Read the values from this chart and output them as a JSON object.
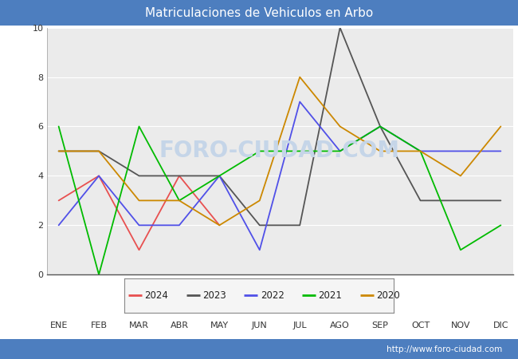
{
  "title": "Matriculaciones de Vehiculos en Arbo",
  "title_bg_color": "#4d7ebf",
  "title_text_color": "#ffffff",
  "plot_bg_color": "#ebebeb",
  "fig_bg_color": "#ffffff",
  "months": [
    "ENE",
    "FEB",
    "MAR",
    "ABR",
    "MAY",
    "JUN",
    "JUL",
    "AGO",
    "SEP",
    "OCT",
    "NOV",
    "DIC"
  ],
  "series": {
    "2024": {
      "color": "#e85050",
      "data": [
        3,
        4,
        1,
        4,
        2,
        null,
        null,
        null,
        null,
        null,
        null,
        null
      ]
    },
    "2023": {
      "color": "#555555",
      "data": [
        5,
        5,
        4,
        4,
        4,
        2,
        2,
        10,
        6,
        3,
        3,
        3
      ]
    },
    "2022": {
      "color": "#5050e8",
      "data": [
        2,
        4,
        2,
        2,
        4,
        1,
        7,
        5,
        6,
        5,
        5,
        5
      ]
    },
    "2021": {
      "color": "#00bb00",
      "data": [
        6,
        0,
        6,
        3,
        4,
        5,
        5,
        5,
        6,
        5,
        1,
        2
      ]
    },
    "2020": {
      "color": "#cc8800",
      "data": [
        5,
        5,
        3,
        3,
        2,
        3,
        8,
        6,
        5,
        5,
        4,
        6
      ]
    }
  },
  "ylim": [
    0,
    10
  ],
  "yticks": [
    0,
    2,
    4,
    6,
    8,
    10
  ],
  "watermark_text": "FORO-CIUDAD.COM",
  "watermark_color": "#c5d5e8",
  "url": "http://www.foro-ciudad.com",
  "footer_bg_color": "#4d7ebf",
  "legend_years": [
    "2024",
    "2023",
    "2022",
    "2021",
    "2020"
  ]
}
